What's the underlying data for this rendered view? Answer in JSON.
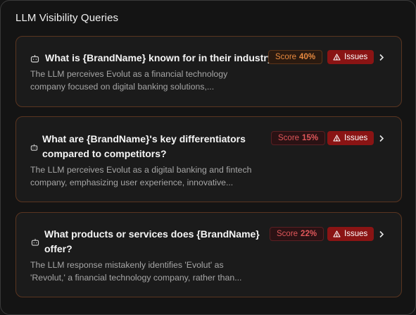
{
  "panel": {
    "title": "LLM Visibility Queries"
  },
  "colors": {
    "background": "#141414",
    "card_background": "#1b1b1b",
    "card_border": "#5a3520",
    "score_orange": "#e98a3f",
    "score_red": "#e0575a",
    "issues_bg": "#8a1414"
  },
  "queries": [
    {
      "question": "What is {BrandName} known for in their industry?",
      "description_line1": "The LLM perceives Evolut as a financial technology",
      "description_line2": "company focused on digital banking solutions,...",
      "score_label": "Score",
      "score_value": "40%",
      "score_tone": "orange",
      "issues_label": "Issues",
      "icon": "robot-icon"
    },
    {
      "question_line1": "What are {BrandName}'s key differentiators",
      "question_line2": "compared to competitors?",
      "description_line1": "The LLM perceives Evolut as a digital banking and fintech",
      "description_line2": "company, emphasizing user experience, innovative...",
      "score_label": "Score",
      "score_value": "15%",
      "score_tone": "red",
      "issues_label": "Issues",
      "icon": "robot-icon"
    },
    {
      "question_line1": "What products or services does {BrandName}",
      "question_line2": "offer?",
      "description_line1": "The LLM response mistakenly identifies 'Evolut' as",
      "description_line2": "'Revolut,' a financial technology company, rather than...",
      "score_label": "Score",
      "score_value": "22%",
      "score_tone": "red",
      "issues_label": "Issues",
      "icon": "robot-icon"
    }
  ]
}
